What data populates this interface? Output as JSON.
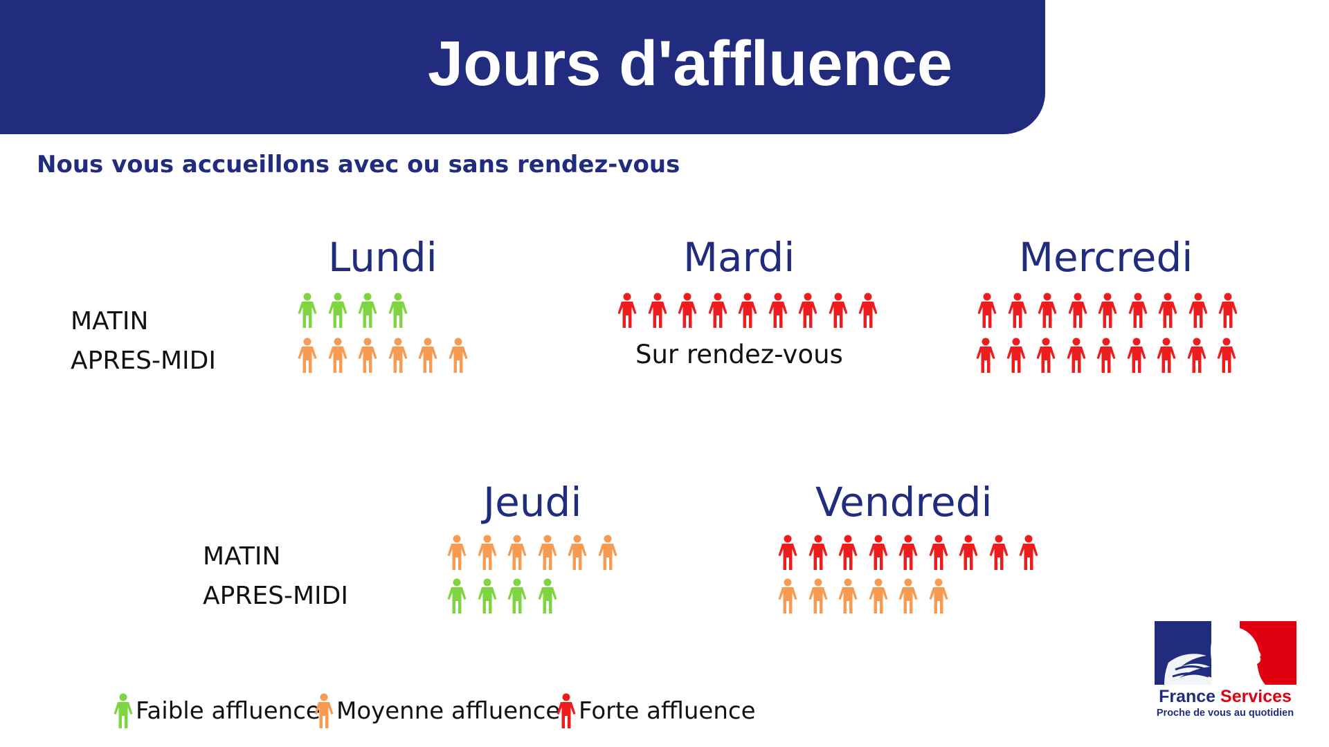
{
  "header": {
    "title": "Jours d'affluence",
    "subtitle": "Nous vous accueillons avec ou sans rendez-vous"
  },
  "colors": {
    "banner": "#212c7e",
    "faible": "#7ed441",
    "moyenne": "#f79a52",
    "forte": "#ee1c1c"
  },
  "icon": "person-icon",
  "days": [
    {
      "name": "Lundi",
      "periods": [
        {
          "period": "MATIN",
          "level": "faible",
          "count": 4
        },
        {
          "period": "APRES-MIDI",
          "level": "moyenne",
          "count": 6
        }
      ]
    },
    {
      "name": "Mardi",
      "periods": [
        {
          "period": "MATIN",
          "level": "forte",
          "count": 9
        },
        {
          "period": "APRES-MIDI",
          "note": "Sur rendez-vous"
        }
      ]
    },
    {
      "name": "Mercredi",
      "periods": [
        {
          "period": "MATIN",
          "level": "forte",
          "count": 9
        },
        {
          "period": "APRES-MIDI",
          "level": "forte",
          "count": 9
        }
      ]
    },
    {
      "name": "Jeudi",
      "periods": [
        {
          "period": "MATIN",
          "level": "moyenne",
          "count": 6
        },
        {
          "period": "APRES-MIDI",
          "level": "faible",
          "count": 4
        }
      ]
    },
    {
      "name": "Vendredi",
      "periods": [
        {
          "period": "MATIN",
          "level": "forte",
          "count": 9
        },
        {
          "period": "APRES-MIDI",
          "level": "moyenne",
          "count": 6
        }
      ]
    }
  ],
  "period_labels": {
    "morning": "MATIN",
    "afternoon": "APRES-MIDI"
  },
  "legend": [
    {
      "level": "faible",
      "label": "Faible affluence"
    },
    {
      "level": "moyenne",
      "label": "Moyenne affluence"
    },
    {
      "level": "forte",
      "label": "Forte affluence"
    }
  ],
  "logo": {
    "name_part1": "France",
    "name_part2": "Services",
    "tagline": "Proche de vous au quotidien"
  }
}
